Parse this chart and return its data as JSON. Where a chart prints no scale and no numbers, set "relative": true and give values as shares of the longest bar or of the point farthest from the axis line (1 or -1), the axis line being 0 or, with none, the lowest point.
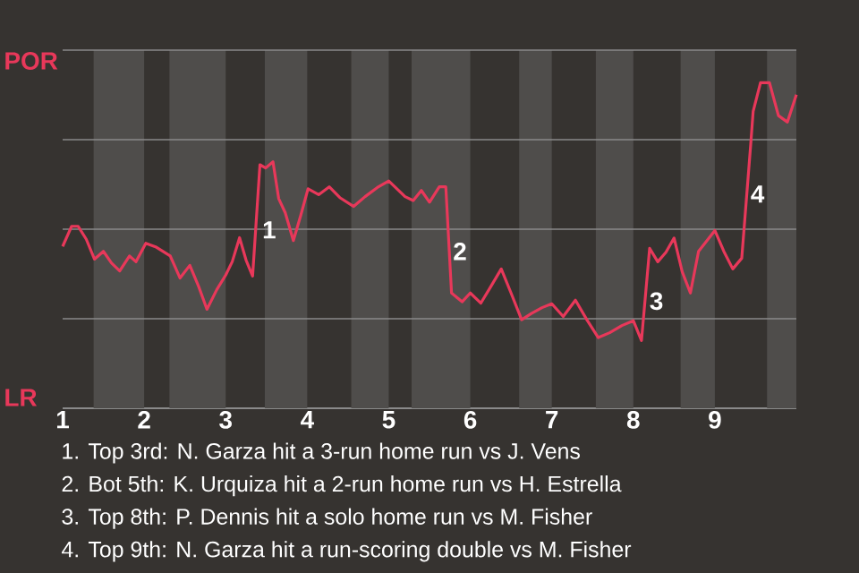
{
  "chart_data": {
    "type": "line",
    "relative": true,
    "xlim": [
      1,
      10
    ],
    "xticks": [
      1,
      2,
      3,
      4,
      5,
      6,
      7,
      8,
      9
    ],
    "grid": "y",
    "series": [
      {
        "color": "#e8385a",
        "x": [
          1,
          1.11,
          1.19,
          1.29,
          1.39,
          1.5,
          1.6,
          1.7,
          1.82,
          1.9,
          2.02,
          2.14,
          2.32,
          2.44,
          2.56,
          2.67,
          2.77,
          2.89,
          3,
          3.08,
          3.17,
          3.25,
          3.33,
          3.42,
          3.49,
          3.58,
          3.65,
          3.73,
          3.83,
          3.92,
          4.01,
          4.14,
          4.27,
          4.4,
          4.57,
          4.71,
          4.86,
          5,
          5.1,
          5.2,
          5.3,
          5.4,
          5.5,
          5.62,
          5.7,
          5.77,
          5.9,
          6,
          6.13,
          6.25,
          6.38,
          6.5,
          6.63,
          6.75,
          6.88,
          7,
          7.14,
          7.29,
          7.43,
          7.57,
          7.71,
          7.86,
          8,
          8.1,
          8.2,
          8.3,
          8.4,
          8.5,
          8.6,
          8.7,
          8.8,
          9,
          9.11,
          9.22,
          9.33,
          9.44,
          9.47,
          9.56,
          9.67,
          9.78,
          9.89,
          10
        ],
        "values": [
          0.497,
          0.559,
          0.559,
          0.519,
          0.458,
          0.482,
          0.446,
          0.422,
          0.468,
          0.45,
          0.507,
          0.496,
          0.468,
          0.4,
          0.439,
          0.373,
          0.304,
          0.364,
          0.409,
          0.45,
          0.524,
          0.455,
          0.406,
          0.748,
          0.738,
          0.757,
          0.644,
          0.601,
          0.515,
          0.592,
          0.674,
          0.656,
          0.68,
          0.647,
          0.62,
          0.65,
          0.678,
          0.698,
          0.674,
          0.65,
          0.638,
          0.669,
          0.633,
          0.68,
          0.68,
          0.354,
          0.327,
          0.354,
          0.323,
          0.373,
          0.428,
          0.354,
          0.272,
          0.291,
          0.309,
          0.321,
          0.282,
          0.332,
          0.272,
          0.217,
          0.232,
          0.254,
          0.269,
          0.208,
          0.491,
          0.45,
          0.479,
          0.523,
          0.419,
          0.354,
          0.482,
          0.546,
          0.482,
          0.428,
          0.461,
          0.811,
          0.912,
          1,
          1,
          0.899,
          0.879,
          0.963
        ]
      }
    ],
    "bands": [
      {
        "axis": "x",
        "from": 1.38,
        "to": 2,
        "color": "#4f4d4b"
      },
      {
        "axis": "x",
        "from": 2.31,
        "to": 3,
        "color": "#4f4d4b"
      },
      {
        "axis": "x",
        "from": 3.48,
        "to": 4,
        "color": "#4f4d4b"
      },
      {
        "axis": "x",
        "from": 4.54,
        "to": 5,
        "color": "#4f4d4b"
      },
      {
        "axis": "x",
        "from": 5.28,
        "to": 6,
        "color": "#4f4d4b"
      },
      {
        "axis": "x",
        "from": 6.6,
        "to": 7,
        "color": "#4f4d4b"
      },
      {
        "axis": "x",
        "from": 7.54,
        "to": 8,
        "color": "#4f4d4b"
      },
      {
        "axis": "x",
        "from": 8.58,
        "to": 9,
        "color": "#4f4d4b"
      },
      {
        "axis": "x",
        "from": 9.64,
        "to": 10,
        "color": "#4f4d4b"
      }
    ],
    "annotations": [
      "POR",
      "LR",
      {
        "text": "1",
        "x": 3.4,
        "y": 0.548
      },
      {
        "text": "2",
        "x": 5.74,
        "y": 0.482
      },
      {
        "text": "3",
        "x": 8.15,
        "y": 0.329
      },
      {
        "text": "4",
        "x": 9.39,
        "y": 0.658
      },
      "1. Top 3rd: N. Garza hit a 3-run home run vs J. Vens",
      "2. Bot 5th: K. Urquiza hit a 2-run home run vs H. Estrella",
      "3. Top 8th: P. Dennis hit a solo home run vs M. Fisher",
      "4. Top 9th: N. Garza hit a run-scoring double vs M. Fisher"
    ]
  }
}
